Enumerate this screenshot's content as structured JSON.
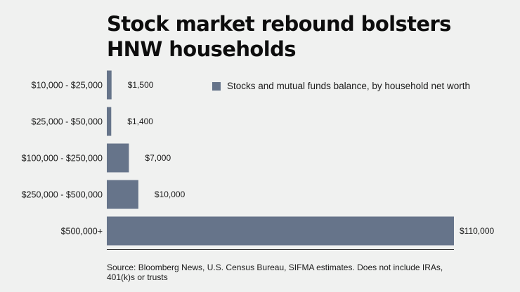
{
  "title_lines": [
    "Stock market rebound bolsters",
    "HNW households"
  ],
  "source_note": "Source: Bloomberg News, U.S. Census Bureau, SIFMA estimates. Does not include IRAs, 401(k)s or trusts",
  "colors": {
    "bar": "#66748a",
    "axis": "#333333",
    "background": "#f0f1f0"
  },
  "chart_data": {
    "type": "bar",
    "orientation": "horizontal",
    "categories": [
      "$10,000 - $25,000",
      "$25,000 - $50,000",
      "$100,000 - $250,000",
      "$250,000 - $500,000",
      "$500,000+"
    ],
    "series": [
      {
        "name": "Stocks and mutual funds balance, by household net worth",
        "values": [
          1500,
          1400,
          7000,
          10000,
          110000
        ]
      }
    ],
    "data_labels": [
      "$1,500",
      "$1,400",
      "$7,000",
      "$10,000",
      "$110,000"
    ],
    "xlim": [
      0,
      110000
    ],
    "grid": false,
    "legend_position": "top-right"
  }
}
